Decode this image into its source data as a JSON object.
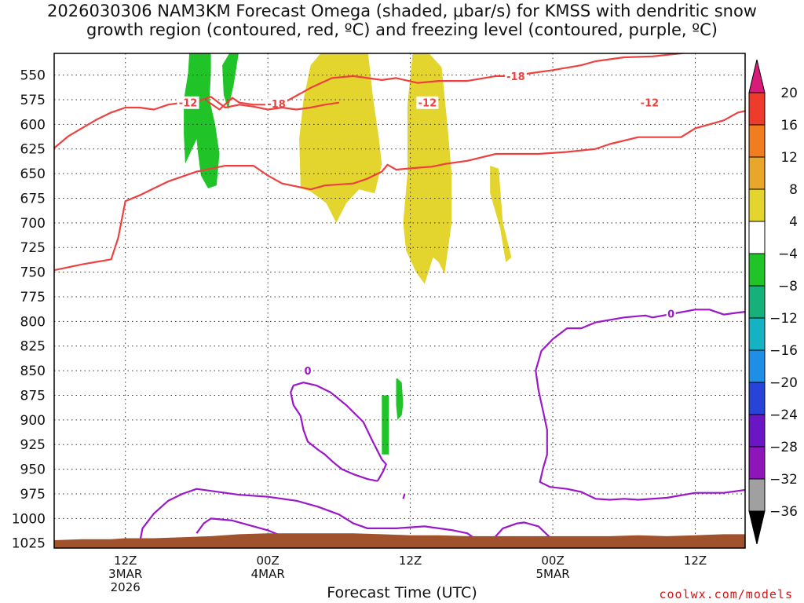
{
  "title": "2026030306 NAM3KM Forecast Omega (shaded, μbar/s) for KMSS with dendritic snow\ngrowth region (contoured, red, ºC) and freezing level (contoured, purple, ºC)",
  "credit": "coolwx.com/models",
  "chart_data": {
    "type": "area",
    "title": "2026030306 NAM3KM Forecast Omega (shaded, μbar/s) for KMSS with dendritic snow growth region (contoured, red, ºC) and freezing level (contoured, purple, ºC)",
    "xlabel": "Forecast Time (UTC)",
    "ylabel": "",
    "x_range_hours": [
      -5,
      43.5
    ],
    "x_ticks": [
      {
        "hour": 0,
        "label": [
          "12Z",
          "3MAR",
          "2026"
        ]
      },
      {
        "hour": 10,
        "label": [
          "00Z",
          "4MAR"
        ]
      },
      {
        "hour": 20,
        "label": [
          "12Z"
        ]
      },
      {
        "hour": 30,
        "label": [
          "00Z",
          "5MAR"
        ]
      },
      {
        "hour": 40,
        "label": [
          "12Z"
        ]
      }
    ],
    "y_range_hpa": [
      1030,
      528
    ],
    "y_ticks": [
      550,
      575,
      600,
      625,
      650,
      675,
      700,
      725,
      750,
      775,
      800,
      825,
      850,
      875,
      900,
      925,
      950,
      975,
      1000,
      1025
    ],
    "grid": true,
    "colorbar": {
      "labels": [
        20,
        16,
        12,
        8,
        4,
        -4,
        -8,
        -12,
        -16,
        -20,
        -24,
        -28,
        -32,
        -36
      ],
      "colors": [
        "#d81b7b",
        "#ef3b2c",
        "#f07d20",
        "#e8a72b",
        "#e3d42e",
        "#ffffff",
        "#21c428",
        "#16b07a",
        "#15b2c4",
        "#1f8fe6",
        "#2844d8",
        "#6a16c4",
        "#8e16b8",
        "#a0a0a0",
        "#000000"
      ]
    },
    "omega_regions": [
      {
        "value": "-4 to -8",
        "color": "#21c428",
        "points": [
          [
            4.5,
            523
          ],
          [
            6.0,
            523
          ],
          [
            6.0,
            548
          ],
          [
            5.9,
            575
          ],
          [
            6.3,
            600
          ],
          [
            6.6,
            630
          ],
          [
            6.4,
            662
          ],
          [
            5.8,
            665
          ],
          [
            5.3,
            652
          ],
          [
            5.1,
            630
          ],
          [
            5.0,
            615
          ],
          [
            4.2,
            640
          ],
          [
            4.1,
            610
          ],
          [
            4.1,
            575
          ],
          [
            4.4,
            548
          ]
        ]
      },
      {
        "value": "-4 to -8",
        "color": "#21c428",
        "points": [
          [
            7.5,
            523
          ],
          [
            8.0,
            523
          ],
          [
            7.6,
            560
          ],
          [
            7.2,
            585
          ],
          [
            6.9,
            570
          ],
          [
            6.8,
            540
          ]
        ]
      },
      {
        "value": "4 to 8",
        "color": "#e3d42e",
        "points": [
          [
            14.0,
            523
          ],
          [
            17.0,
            523
          ],
          [
            17.4,
            575
          ],
          [
            17.8,
            615
          ],
          [
            18.0,
            640
          ],
          [
            17.5,
            670
          ],
          [
            16.4,
            666
          ],
          [
            15.5,
            680
          ],
          [
            14.8,
            700
          ],
          [
            14.1,
            680
          ],
          [
            13.0,
            668
          ],
          [
            12.3,
            665
          ],
          [
            12.2,
            615
          ],
          [
            12.5,
            575
          ],
          [
            13.0,
            540
          ]
        ]
      },
      {
        "value": "4 to 8",
        "color": "#e3d42e",
        "points": [
          [
            20.2,
            523
          ],
          [
            21.0,
            523
          ],
          [
            22.2,
            542
          ],
          [
            22.6,
            600
          ],
          [
            22.9,
            650
          ],
          [
            22.9,
            700
          ],
          [
            22.4,
            752
          ],
          [
            22.0,
            740
          ],
          [
            21.6,
            735
          ],
          [
            21.0,
            762
          ],
          [
            20.4,
            750
          ],
          [
            19.7,
            728
          ],
          [
            19.5,
            700
          ],
          [
            19.8,
            650
          ],
          [
            19.8,
            580
          ]
        ]
      },
      {
        "value": "4 to 8",
        "color": "#e3d42e",
        "points": [
          [
            25.6,
            642
          ],
          [
            26.2,
            645
          ],
          [
            26.5,
            700
          ],
          [
            27.1,
            735
          ],
          [
            26.7,
            740
          ],
          [
            26.3,
            705
          ],
          [
            25.6,
            670
          ]
        ]
      },
      {
        "value": "-4 to -8",
        "color": "#21c428",
        "points": [
          [
            19.0,
            858
          ],
          [
            19.1,
            858
          ],
          [
            19.4,
            862
          ],
          [
            19.5,
            884
          ],
          [
            19.4,
            895
          ],
          [
            19.1,
            900
          ],
          [
            19.0,
            885
          ]
        ]
      },
      {
        "value": "-4 to -8",
        "color": "#21c428",
        "points": [
          [
            18.0,
            875
          ],
          [
            18.5,
            875
          ],
          [
            18.5,
            935
          ],
          [
            18.0,
            935
          ]
        ]
      }
    ],
    "red_isotherms": [
      {
        "value": -18,
        "labels": [
          {
            "hour": 10.6,
            "text": "-18"
          },
          {
            "hour": 27.4,
            "text": "-18"
          }
        ],
        "points": [
          [
            5.7,
            576
          ],
          [
            6.6,
            585
          ],
          [
            7.5,
            573
          ],
          [
            8.0,
            578
          ],
          [
            9.0,
            580
          ],
          [
            10.0,
            580
          ],
          [
            11.0,
            579
          ],
          [
            13.0,
            563
          ],
          [
            14.5,
            553
          ],
          [
            16.0,
            551
          ],
          [
            18.0,
            555
          ],
          [
            19.0,
            553
          ],
          [
            20.5,
            558
          ],
          [
            22.0,
            556
          ],
          [
            24.0,
            556
          ],
          [
            26.0,
            551
          ],
          [
            27.0,
            551
          ],
          [
            28.0,
            549
          ],
          [
            30.0,
            545
          ],
          [
            32.0,
            540
          ],
          [
            33.0,
            536
          ],
          [
            35.0,
            532
          ],
          [
            37.0,
            531
          ],
          [
            39.0,
            528
          ],
          [
            41.0,
            523
          ]
        ]
      },
      {
        "value": -12,
        "labels": [
          {
            "hour": 4.4,
            "text": "-12"
          },
          {
            "hour": 21.2,
            "text": "-12"
          },
          {
            "hour": 36.8,
            "text": "-12"
          }
        ],
        "points": [
          [
            -5,
            624
          ],
          [
            -4,
            612
          ],
          [
            -2,
            595
          ],
          [
            -1,
            588
          ],
          [
            0,
            583
          ],
          [
            1,
            583
          ],
          [
            2,
            585
          ],
          [
            3,
            580
          ],
          [
            4,
            578
          ],
          [
            5,
            577
          ],
          [
            6,
            572
          ],
          [
            7,
            583
          ],
          [
            8,
            580
          ],
          [
            9,
            582
          ],
          [
            10,
            585
          ],
          [
            11,
            583
          ],
          [
            12,
            585
          ],
          [
            13,
            583
          ],
          [
            14,
            580
          ],
          [
            15,
            578
          ]
        ]
      },
      {
        "value": -12,
        "labels": [],
        "points": [
          [
            -5,
            748
          ],
          [
            -3,
            742
          ],
          [
            -1,
            737
          ],
          [
            -0.5,
            715
          ],
          [
            0,
            678
          ],
          [
            1,
            672
          ],
          [
            2,
            665
          ],
          [
            3,
            658
          ],
          [
            5,
            648
          ],
          [
            7,
            642
          ],
          [
            9,
            642
          ],
          [
            10,
            652
          ],
          [
            11,
            660
          ],
          [
            12,
            663
          ],
          [
            13,
            666
          ],
          [
            14,
            662
          ],
          [
            16,
            660
          ],
          [
            17,
            655
          ],
          [
            18,
            648
          ],
          [
            18.4,
            641
          ],
          [
            19,
            646
          ],
          [
            20.5,
            644
          ],
          [
            21.5,
            643
          ],
          [
            22.5,
            640
          ],
          [
            24,
            637
          ],
          [
            26,
            630
          ],
          [
            29,
            630
          ],
          [
            31,
            628
          ],
          [
            33,
            625
          ],
          [
            34,
            620
          ],
          [
            36,
            613
          ],
          [
            38,
            613
          ],
          [
            39,
            613
          ],
          [
            40,
            604
          ],
          [
            41,
            600
          ],
          [
            42,
            596
          ],
          [
            43,
            588
          ],
          [
            44,
            585
          ],
          [
            45,
            585
          ]
        ]
      }
    ],
    "purple_isotherms": [
      {
        "value": 0,
        "labels": [
          {
            "hour": 12.8,
            "text": "0"
          },
          {
            "hour": 38.3,
            "text": "0"
          }
        ],
        "points": [
          [
            45,
            788
          ],
          [
            43,
            791
          ],
          [
            42,
            793
          ],
          [
            41,
            788
          ],
          [
            40,
            788
          ],
          [
            38.5,
            792
          ],
          [
            37,
            796
          ],
          [
            36.5,
            794
          ],
          [
            35,
            796
          ],
          [
            33,
            801
          ],
          [
            32,
            807
          ],
          [
            31,
            807
          ],
          [
            30,
            818
          ],
          [
            29.2,
            830
          ],
          [
            28.8,
            850
          ],
          [
            29.0,
            870
          ],
          [
            29.3,
            890
          ],
          [
            29.6,
            910
          ],
          [
            29.6,
            935
          ],
          [
            29.3,
            950
          ],
          [
            29.1,
            963
          ],
          [
            29.8,
            968
          ],
          [
            31.0,
            970
          ],
          [
            32.0,
            973
          ],
          [
            33.0,
            980
          ],
          [
            34.0,
            981
          ],
          [
            35.0,
            980
          ],
          [
            36.0,
            981
          ],
          [
            38.0,
            979
          ],
          [
            40.0,
            974
          ],
          [
            42.0,
            974
          ],
          [
            44.0,
            970
          ],
          [
            45,
            965
          ]
        ]
      },
      {
        "value": 0,
        "labels": [],
        "points": [
          [
            17.7,
            962
          ],
          [
            17.0,
            960
          ],
          [
            16.0,
            955
          ],
          [
            15.2,
            950
          ],
          [
            14.6,
            943
          ],
          [
            14.0,
            935
          ],
          [
            13.5,
            930
          ],
          [
            12.8,
            922
          ],
          [
            12.5,
            910
          ],
          [
            12.3,
            896
          ],
          [
            11.8,
            885
          ],
          [
            11.6,
            872
          ],
          [
            11.8,
            865
          ],
          [
            12.5,
            862
          ],
          [
            13.4,
            865
          ],
          [
            14.4,
            872
          ],
          [
            15.5,
            885
          ],
          [
            16.7,
            902
          ],
          [
            17.3,
            920
          ],
          [
            18.0,
            940
          ],
          [
            18.3,
            945
          ],
          [
            18.1,
            952
          ],
          [
            17.7,
            962
          ]
        ]
      },
      {
        "value": 0,
        "labels": [],
        "points": [
          [
            1.0,
            1025
          ],
          [
            1.2,
            1010
          ],
          [
            2.0,
            995
          ],
          [
            3.0,
            982
          ],
          [
            4.0,
            975
          ],
          [
            5.0,
            970
          ],
          [
            6.0,
            972
          ],
          [
            8.0,
            976
          ],
          [
            10.0,
            978
          ],
          [
            12.0,
            982
          ],
          [
            13.5,
            988
          ],
          [
            15.0,
            996
          ],
          [
            16.0,
            1005
          ],
          [
            17.0,
            1010
          ],
          [
            19.0,
            1010
          ],
          [
            21.0,
            1008
          ],
          [
            23.0,
            1012
          ],
          [
            24.0,
            1015
          ],
          [
            25.0,
            1025
          ]
        ]
      },
      {
        "value": 0,
        "labels": [],
        "points": [
          [
            5.0,
            1015
          ],
          [
            5.5,
            1005
          ],
          [
            6.0,
            1000
          ],
          [
            7.5,
            1002
          ],
          [
            9.0,
            1008
          ],
          [
            10.0,
            1012
          ],
          [
            11.0,
            1018
          ],
          [
            12.0,
            1019
          ]
        ]
      },
      {
        "value": 0,
        "labels": [],
        "points": [
          [
            25.5,
            1025
          ],
          [
            26.0,
            1018
          ],
          [
            26.5,
            1010
          ],
          [
            27.5,
            1005
          ],
          [
            28.0,
            1004
          ],
          [
            29.0,
            1008
          ],
          [
            29.5,
            1015
          ],
          [
            30.0,
            1022
          ]
        ]
      },
      {
        "value": 0,
        "labels": [],
        "points": [
          [
            19.5,
            980
          ],
          [
            19.6,
            975
          ]
        ]
      }
    ],
    "ground_surface_hpa": [
      [
        -5,
        1022
      ],
      [
        -3,
        1021
      ],
      [
        -1,
        1021
      ],
      [
        0,
        1020
      ],
      [
        2,
        1020
      ],
      [
        4,
        1019
      ],
      [
        6,
        1018
      ],
      [
        8,
        1016
      ],
      [
        10,
        1015
      ],
      [
        12,
        1015
      ],
      [
        14,
        1015
      ],
      [
        16,
        1015
      ],
      [
        18,
        1016
      ],
      [
        20,
        1017
      ],
      [
        22,
        1017
      ],
      [
        24,
        1018
      ],
      [
        26,
        1018
      ],
      [
        28,
        1018
      ],
      [
        30,
        1018
      ],
      [
        32,
        1018
      ],
      [
        34,
        1018
      ],
      [
        36,
        1017
      ],
      [
        38,
        1018
      ],
      [
        40,
        1017
      ],
      [
        42,
        1016
      ],
      [
        44,
        1016
      ],
      [
        45,
        1016
      ]
    ]
  }
}
